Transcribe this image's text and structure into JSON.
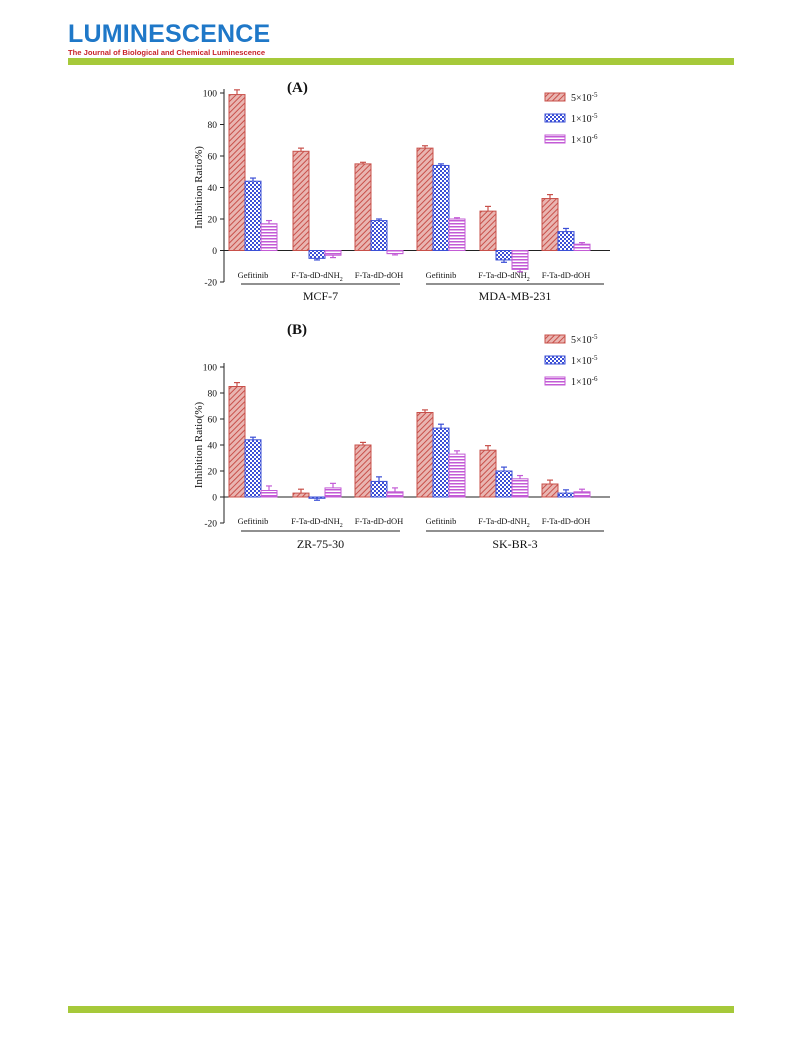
{
  "header": {
    "journal_title": "LUMINESCENCE",
    "journal_subtitle": "The Journal of Biological and Chemical Luminescence"
  },
  "colors": {
    "series_1": "#c8504a",
    "series_2": "#3b4fd6",
    "series_3": "#c35bd6",
    "rule": "#a6c93a",
    "title_blue": "#1f78c8",
    "title_red": "#c8242b"
  },
  "chart_data": [
    {
      "type": "bar",
      "panel_label": "(A)",
      "ylabel": "Inhibition Ratio%)",
      "ylim": [
        -20,
        100
      ],
      "yticks": [
        -20,
        0,
        20,
        40,
        60,
        80,
        100
      ],
      "legend_position": "top-right",
      "legend": [
        "5×10",
        "1×10",
        "1×10"
      ],
      "legend_exponents": [
        "-5",
        "-5",
        "-6"
      ],
      "categories": [
        {
          "name": "Gefitinib",
          "sub": ""
        },
        {
          "name": "F-Ta-dD-dNH",
          "sub": "2"
        },
        {
          "name": "F-Ta-dD-dOH",
          "sub": ""
        },
        {
          "name": "Gefitinib",
          "sub": ""
        },
        {
          "name": "F-Ta-dD-dNH",
          "sub": "2"
        },
        {
          "name": "F-Ta-dD-dOH",
          "sub": ""
        }
      ],
      "groups": [
        "MCF-7",
        "MDA-MB-231"
      ],
      "series": [
        {
          "values": [
            99,
            63,
            55,
            65,
            25,
            33
          ],
          "errors": [
            3,
            2,
            1,
            1.5,
            3,
            2.5
          ]
        },
        {
          "values": [
            44,
            -5,
            19,
            54,
            -6,
            12
          ],
          "errors": [
            2,
            1,
            1,
            1,
            1.5,
            2
          ]
        },
        {
          "values": [
            17,
            -3,
            -2,
            20,
            -12,
            4
          ],
          "errors": [
            2,
            1.5,
            0.8,
            0.8,
            1.5,
            1
          ]
        }
      ]
    },
    {
      "type": "bar",
      "panel_label": "(B)",
      "ylabel": "Inhibition Ratio(%)",
      "ylim": [
        -20,
        100
      ],
      "yticks": [
        -20,
        0,
        20,
        40,
        60,
        80,
        100
      ],
      "legend_position": "top-right",
      "legend": [
        "5×10",
        "1×10",
        "1×10"
      ],
      "legend_exponents": [
        "-5",
        "-5",
        "-6"
      ],
      "categories": [
        {
          "name": "Gefitinib",
          "sub": ""
        },
        {
          "name": "F-Ta-dD-dNH",
          "sub": "2"
        },
        {
          "name": "F-Ta-dD-dOH",
          "sub": ""
        },
        {
          "name": "Gefitinib",
          "sub": ""
        },
        {
          "name": "F-Ta-dD-dNH",
          "sub": "2"
        },
        {
          "name": "F-Ta-dD-dOH",
          "sub": ""
        }
      ],
      "groups": [
        "ZR-75-30",
        "SK-BR-3"
      ],
      "series": [
        {
          "values": [
            85,
            3,
            40,
            65,
            36,
            10
          ],
          "errors": [
            3,
            3,
            2,
            2,
            3.5,
            3
          ]
        },
        {
          "values": [
            44,
            -1,
            12,
            53,
            20,
            3
          ],
          "errors": [
            2,
            1.5,
            3.5,
            3,
            3,
            2.5
          ]
        },
        {
          "values": [
            5,
            7,
            4,
            33,
            14,
            4
          ],
          "errors": [
            3.5,
            3.5,
            3,
            2.5,
            2.5,
            2
          ]
        }
      ]
    }
  ]
}
